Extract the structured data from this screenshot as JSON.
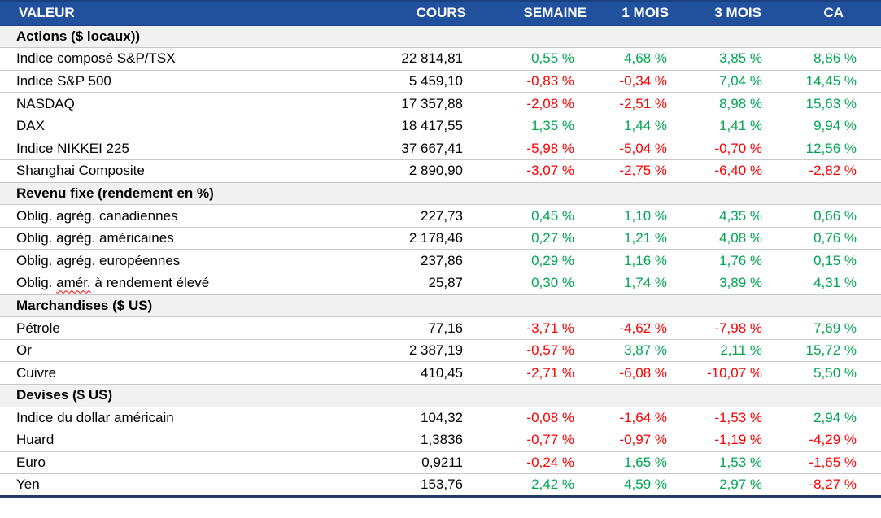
{
  "chart_data": {
    "type": "table",
    "columns": [
      "VALEUR",
      "COURS",
      "SEMAINE",
      "1 MOIS",
      "3 MOIS",
      "CA"
    ],
    "colors": {
      "positive": "#00A651",
      "negative": "#FF0000",
      "header_bg": "#21519C",
      "border_navy": "#1F3864",
      "header_text": "#FFFFFF",
      "section_bg": "#F1F1F1"
    },
    "sections": [
      {
        "title": "Actions ($ locaux))",
        "rows": [
          {
            "label": "Indice composé S&P/TSX",
            "cours": "22 814,81",
            "semaine": "0,55 %",
            "mois1": "4,68 %",
            "mois3": "3,85 %",
            "ca": "8,86 %"
          },
          {
            "label": "Indice S&P 500",
            "cours": "5 459,10",
            "semaine": "-0,83 %",
            "mois1": "-0,34 %",
            "mois3": "7,04 %",
            "ca": "14,45 %"
          },
          {
            "label": "NASDAQ",
            "cours": "17 357,88",
            "semaine": "-2,08 %",
            "mois1": "-2,51 %",
            "mois3": "8,98 %",
            "ca": "15,63 %"
          },
          {
            "label": "DAX",
            "cours": "18 417,55",
            "semaine": "1,35 %",
            "mois1": "1,44 %",
            "mois3": "1,41 %",
            "ca": "9,94 %"
          },
          {
            "label": "Indice NIKKEI 225",
            "cours": "37 667,41",
            "semaine": "-5,98 %",
            "mois1": "-5,04 %",
            "mois3": "-0,70 %",
            "ca": "12,56 %"
          },
          {
            "label": "Shanghai Composite",
            "cours": "2 890,90",
            "semaine": "-3,07 %",
            "mois1": "-2,75 %",
            "mois3": "-6,40 %",
            "ca": "-2,82 %"
          }
        ]
      },
      {
        "title": "Revenu fixe (rendement en %)",
        "rows": [
          {
            "label": "Oblig. agrég. canadiennes",
            "cours": "227,73",
            "semaine": "0,45 %",
            "mois1": "1,10 %",
            "mois3": "4,35 %",
            "ca": "0,66 %"
          },
          {
            "label": "Oblig. agrég. américaines",
            "cours": "2 178,46",
            "semaine": "0,27 %",
            "mois1": "1,21 %",
            "mois3": "4,08 %",
            "ca": "0,76 %"
          },
          {
            "label": "Oblig. agrég. européennes",
            "cours": "237,86",
            "semaine": "0,29 %",
            "mois1": "1,16 %",
            "mois3": "1,76 %",
            "ca": "0,15 %"
          },
          {
            "label": "Oblig. amér. à rendement élevé",
            "cours": "25,87",
            "semaine": "0,30 %",
            "mois1": "1,74 %",
            "mois3": "3,89 %",
            "ca": "4,31 %",
            "spellcheck_word": "amér."
          }
        ]
      },
      {
        "title": "Marchandises ($ US)",
        "rows": [
          {
            "label": "Pétrole",
            "cours": "77,16",
            "semaine": "-3,71 %",
            "mois1": "-4,62 %",
            "mois3": "-7,98 %",
            "ca": "7,69 %"
          },
          {
            "label": "Or",
            "cours": "2 387,19",
            "semaine": "-0,57 %",
            "mois1": "3,87 %",
            "mois3": "2,11 %",
            "ca": "15,72 %"
          },
          {
            "label": "Cuivre",
            "cours": "410,45",
            "semaine": "-2,71 %",
            "mois1": "-6,08 %",
            "mois3": "-10,07 %",
            "ca": "5,50 %"
          }
        ]
      },
      {
        "title": "Devises ($ US)",
        "rows": [
          {
            "label": "Indice du dollar américain",
            "cours": "104,32",
            "semaine": "-0,08 %",
            "mois1": "-1,64 %",
            "mois3": "-1,53 %",
            "ca": "2,94 %"
          },
          {
            "label": "Huard",
            "cours": "1,3836",
            "semaine": "-0,77 %",
            "mois1": "-0,97 %",
            "mois3": "-1,19 %",
            "ca": "-4,29 %"
          },
          {
            "label": "Euro",
            "cours": "0,9211",
            "semaine": "-0,24 %",
            "mois1": "1,65 %",
            "mois3": "1,53 %",
            "ca": "-1,65 %"
          },
          {
            "label": "Yen",
            "cours": "153,76",
            "semaine": "2,42 %",
            "mois1": "4,59 %",
            "mois3": "2,97 %",
            "ca": "-8,27 %"
          }
        ]
      }
    ]
  }
}
